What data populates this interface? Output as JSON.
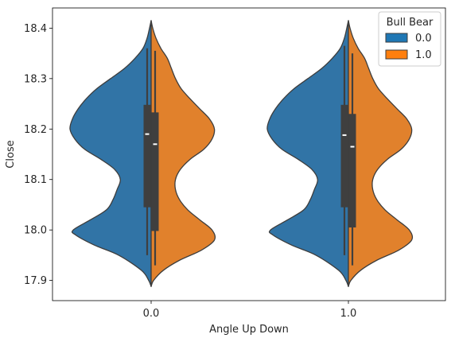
{
  "chart_data": {
    "type": "violin",
    "split": true,
    "xlabel": "Angle Up Down",
    "ylabel": "Close",
    "categories": [
      "0.0",
      "1.0"
    ],
    "yticks": [
      "17.9",
      "18.0",
      "18.1",
      "18.2",
      "18.3",
      "18.4"
    ],
    "ylim": [
      17.86,
      18.44
    ],
    "legend": {
      "title": "Bull Bear",
      "placement": "upper right",
      "entries": [
        {
          "label": "0.0",
          "color": "#1f77b4"
        },
        {
          "label": "1.0",
          "color": "#ff7f0e"
        }
      ]
    },
    "groups": [
      {
        "category": "0.0",
        "halves": [
          {
            "hue": "0.0",
            "side": "left",
            "color": "#3174a6",
            "ymin": 17.888,
            "ymax": 18.415,
            "density_profile": [
              [
                17.888,
                0
              ],
              [
                17.9,
                0.03
              ],
              [
                17.92,
                0.12
              ],
              [
                17.95,
                0.4
              ],
              [
                17.97,
                0.7
              ],
              [
                17.99,
                0.93
              ],
              [
                18.0,
                0.96
              ],
              [
                18.02,
                0.75
              ],
              [
                18.04,
                0.55
              ],
              [
                18.06,
                0.47
              ],
              [
                18.08,
                0.42
              ],
              [
                18.1,
                0.38
              ],
              [
                18.12,
                0.45
              ],
              [
                18.14,
                0.62
              ],
              [
                18.16,
                0.82
              ],
              [
                18.18,
                0.94
              ],
              [
                18.2,
                1.0
              ],
              [
                18.22,
                0.97
              ],
              [
                18.24,
                0.9
              ],
              [
                18.26,
                0.8
              ],
              [
                18.28,
                0.67
              ],
              [
                18.3,
                0.5
              ],
              [
                18.32,
                0.33
              ],
              [
                18.34,
                0.2
              ],
              [
                18.36,
                0.1
              ],
              [
                18.38,
                0.05
              ],
              [
                18.4,
                0.02
              ],
              [
                18.415,
                0
              ]
            ],
            "box": {
              "q1": 18.045,
              "median": 18.19,
              "q3": 18.248
            },
            "whisker": [
              17.95,
              18.36
            ]
          },
          {
            "hue": "1.0",
            "side": "right",
            "color": "#e1812c",
            "ymin": 17.888,
            "ymax": 18.415,
            "density_profile": [
              [
                17.888,
                0
              ],
              [
                17.9,
                0.03
              ],
              [
                17.92,
                0.15
              ],
              [
                17.94,
                0.35
              ],
              [
                17.96,
                0.62
              ],
              [
                17.98,
                0.78
              ],
              [
                18.0,
                0.75
              ],
              [
                18.02,
                0.6
              ],
              [
                18.04,
                0.45
              ],
              [
                18.06,
                0.35
              ],
              [
                18.08,
                0.3
              ],
              [
                18.1,
                0.3
              ],
              [
                18.12,
                0.36
              ],
              [
                18.14,
                0.48
              ],
              [
                18.16,
                0.65
              ],
              [
                18.18,
                0.75
              ],
              [
                18.2,
                0.78
              ],
              [
                18.22,
                0.72
              ],
              [
                18.24,
                0.6
              ],
              [
                18.26,
                0.48
              ],
              [
                18.28,
                0.37
              ],
              [
                18.3,
                0.3
              ],
              [
                18.32,
                0.25
              ],
              [
                18.34,
                0.2
              ],
              [
                18.36,
                0.12
              ],
              [
                18.38,
                0.06
              ],
              [
                18.4,
                0.02
              ],
              [
                18.415,
                0
              ]
            ],
            "box": {
              "q1": 17.998,
              "median": 18.17,
              "q3": 18.233
            },
            "whisker": [
              17.93,
              18.355
            ]
          }
        ]
      },
      {
        "category": "1.0",
        "halves": [
          {
            "hue": "0.0",
            "side": "left",
            "color": "#3174a6",
            "ymin": 17.888,
            "ymax": 18.415,
            "density_profile": [
              [
                17.888,
                0
              ],
              [
                17.9,
                0.03
              ],
              [
                17.92,
                0.12
              ],
              [
                17.95,
                0.4
              ],
              [
                17.97,
                0.7
              ],
              [
                17.99,
                0.93
              ],
              [
                18.0,
                0.96
              ],
              [
                18.02,
                0.75
              ],
              [
                18.04,
                0.55
              ],
              [
                18.06,
                0.47
              ],
              [
                18.08,
                0.42
              ],
              [
                18.1,
                0.38
              ],
              [
                18.12,
                0.45
              ],
              [
                18.14,
                0.62
              ],
              [
                18.16,
                0.82
              ],
              [
                18.18,
                0.94
              ],
              [
                18.2,
                1.0
              ],
              [
                18.22,
                0.97
              ],
              [
                18.24,
                0.9
              ],
              [
                18.26,
                0.8
              ],
              [
                18.28,
                0.67
              ],
              [
                18.3,
                0.5
              ],
              [
                18.32,
                0.33
              ],
              [
                18.34,
                0.2
              ],
              [
                18.36,
                0.1
              ],
              [
                18.38,
                0.05
              ],
              [
                18.4,
                0.02
              ],
              [
                18.415,
                0
              ]
            ],
            "box": {
              "q1": 18.045,
              "median": 18.188,
              "q3": 18.248
            },
            "whisker": [
              17.95,
              18.365
            ]
          },
          {
            "hue": "1.0",
            "side": "right",
            "color": "#e1812c",
            "ymin": 17.888,
            "ymax": 18.415,
            "density_profile": [
              [
                17.888,
                0
              ],
              [
                17.9,
                0.03
              ],
              [
                17.92,
                0.15
              ],
              [
                17.94,
                0.35
              ],
              [
                17.96,
                0.62
              ],
              [
                17.98,
                0.78
              ],
              [
                18.0,
                0.75
              ],
              [
                18.02,
                0.6
              ],
              [
                18.04,
                0.45
              ],
              [
                18.06,
                0.35
              ],
              [
                18.08,
                0.3
              ],
              [
                18.1,
                0.3
              ],
              [
                18.12,
                0.36
              ],
              [
                18.14,
                0.48
              ],
              [
                18.16,
                0.65
              ],
              [
                18.18,
                0.75
              ],
              [
                18.2,
                0.78
              ],
              [
                18.22,
                0.72
              ],
              [
                18.24,
                0.6
              ],
              [
                18.26,
                0.48
              ],
              [
                18.28,
                0.37
              ],
              [
                18.3,
                0.3
              ],
              [
                18.32,
                0.25
              ],
              [
                18.34,
                0.2
              ],
              [
                18.36,
                0.12
              ],
              [
                18.38,
                0.06
              ],
              [
                18.4,
                0.02
              ],
              [
                18.415,
                0
              ]
            ],
            "box": {
              "q1": 18.005,
              "median": 18.165,
              "q3": 18.23
            },
            "whisker": [
              17.93,
              18.35
            ]
          }
        ]
      }
    ]
  }
}
